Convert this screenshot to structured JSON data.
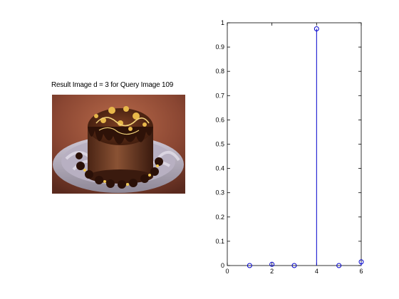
{
  "left_panel": {
    "title": "Result Image d = 3 for Query Image 109",
    "image_alt": "chocolate cake"
  },
  "chart_data": {
    "type": "scatter",
    "style": "stem",
    "marker": "open-circle",
    "color": "#0000cc",
    "x": [
      1,
      2,
      3,
      4,
      5,
      6
    ],
    "y": [
      0.0,
      0.005,
      0.0,
      0.975,
      0.0,
      0.015
    ],
    "xlim": [
      0,
      6
    ],
    "ylim": [
      0,
      1
    ],
    "xticks": [
      "0",
      "2",
      "4",
      "6"
    ],
    "yticks": [
      "0",
      "0.1",
      "0.2",
      "0.3",
      "0.4",
      "0.5",
      "0.6",
      "0.7",
      "0.8",
      "0.9",
      "1"
    ],
    "title": "",
    "xlabel": "",
    "ylabel": "",
    "grid": false
  }
}
